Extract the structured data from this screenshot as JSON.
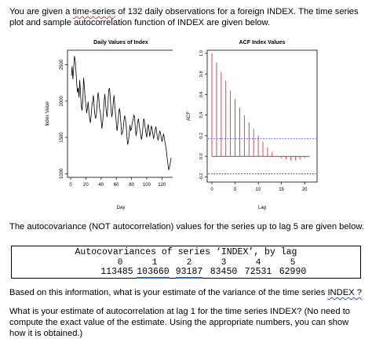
{
  "text": {
    "intro_a": "You are given a ",
    "intro_squig": "time-series",
    "intro_b": " of 132 daily observations for a foreign INDEX. The time series plot and sample autocorrelation function of INDEX are given below.",
    "autocov_intro": "The autocovariance (NOT autocorrelation) values for the series up to lag 5 are given below.",
    "question1_a": "Based on this information, what is your estimate of the variance of the time series ",
    "question1_squig": "INDEX ?",
    "question2": "What is your estimate of autocorrelation at lag 1 for the time series INDEX? (No need to compute the exact value of the estimate. Using the appropriate numbers, you can show how it is obtained.)"
  },
  "r_output": {
    "header": "Autocovariances of series ‘INDEX’, by lag",
    "lags": [
      "0",
      "1",
      "2",
      "3",
      "4",
      "5"
    ],
    "values": [
      "113485",
      "103660",
      "93187",
      "83450",
      "72531",
      "62990"
    ],
    "underlined": [
      "103660",
      "93187"
    ]
  },
  "colors": {
    "acf_bars": "#e83030",
    "ci_line": "#3a3af0",
    "underline": "#2f62c8",
    "spellcheck": "#d04040"
  },
  "chart_data": [
    {
      "type": "line",
      "title": "Daily Values of Index",
      "xlabel": "Day",
      "ylabel": "Index Value",
      "xlim": [
        0,
        132
      ],
      "ylim": [
        950,
        2700
      ],
      "xticks": [
        "0",
        "20",
        "40",
        "60",
        "80",
        "100",
        "120"
      ],
      "yticks": [
        "1000",
        "1500",
        "2000",
        "2500"
      ],
      "series": [
        {
          "x": [
            1,
            2,
            3,
            4,
            5,
            6,
            7,
            8,
            9,
            10,
            11,
            12,
            13,
            14,
            15,
            16,
            17,
            18,
            19,
            20,
            21,
            22,
            23,
            24,
            25,
            26,
            27,
            28,
            29,
            30,
            31,
            32,
            33,
            34,
            35,
            36,
            37,
            38,
            39,
            40,
            41,
            42,
            43,
            44,
            45,
            46,
            47,
            48,
            49,
            50,
            51,
            52,
            53,
            54,
            55,
            56,
            57,
            58,
            59,
            60,
            61,
            62,
            63,
            64,
            65,
            66,
            67,
            68,
            69,
            70,
            71,
            72,
            73,
            74,
            75,
            76,
            77,
            78,
            79,
            80,
            81,
            82,
            83,
            84,
            85,
            86,
            87,
            88,
            89,
            90,
            91,
            92,
            93,
            94,
            95,
            96,
            97,
            98,
            99,
            100,
            101,
            102,
            103,
            104,
            105,
            106,
            107,
            108,
            109,
            110,
            111,
            112,
            113,
            114,
            115,
            116,
            117,
            118,
            119,
            120,
            121,
            122,
            123,
            124,
            125,
            126,
            127,
            128,
            129,
            130,
            131,
            132
          ],
          "y": [
            2350,
            2480,
            2300,
            2450,
            2620,
            2560,
            2410,
            2230,
            2120,
            2180,
            2050,
            2290,
            2110,
            1930,
            1870,
            2000,
            2320,
            2200,
            2050,
            1960,
            1830,
            1900,
            1990,
            1850,
            1760,
            1700,
            1810,
            1950,
            2000,
            2080,
            1900,
            1800,
            1760,
            1840,
            1980,
            2120,
            2050,
            1900,
            1850,
            1750,
            1620,
            1700,
            1830,
            2000,
            2100,
            1950,
            1840,
            1780,
            1960,
            2150,
            2180,
            2060,
            1900,
            1780,
            1830,
            1980,
            2080,
            1950,
            1820,
            1700,
            1590,
            1680,
            1800,
            1900,
            1850,
            1700,
            1540,
            1560,
            1610,
            1730,
            1800,
            1760,
            1650,
            1500,
            1400,
            1450,
            1560,
            1670,
            1590,
            1620,
            1700,
            1740,
            1810,
            1780,
            1630,
            1520,
            1600,
            1700,
            1760,
            1680,
            1600,
            1550,
            1470,
            1530,
            1640,
            1760,
            1720,
            1630,
            1560,
            1500,
            1620,
            1680,
            1600,
            1510,
            1570,
            1660,
            1620,
            1550,
            1480,
            1540,
            1600,
            1650,
            1580,
            1500,
            1460,
            1520,
            1590,
            1560,
            1500,
            1440,
            1480,
            1550,
            1500,
            1430,
            1380,
            1300,
            1200,
            1120,
            1050,
            1100,
            1150,
            1220
          ]
        }
      ]
    },
    {
      "type": "bar",
      "title": "ACF Index Values",
      "xlabel": "Lag",
      "ylabel": "ACF",
      "xlim": [
        0,
        22
      ],
      "ylim": [
        -0.22,
        1.0
      ],
      "xticks": [
        "0",
        "5",
        "10",
        "15",
        "20"
      ],
      "yticks": [
        "-0.2",
        "0.0",
        "0.2",
        "0.4",
        "0.6",
        "0.8",
        "1.0"
      ],
      "confidence_band": [
        0.171,
        -0.171
      ],
      "lags": [
        0,
        1,
        2,
        3,
        4,
        5,
        6,
        7,
        8,
        9,
        10,
        11,
        12,
        13,
        14,
        15,
        16,
        17,
        18,
        19,
        20,
        21
      ],
      "values": [
        1.0,
        0.913,
        0.821,
        0.735,
        0.639,
        0.555,
        0.475,
        0.4,
        0.33,
        0.265,
        0.2,
        0.14,
        0.085,
        0.04,
        0.005,
        -0.015,
        -0.03,
        -0.04,
        -0.04,
        -0.03,
        -0.02,
        -0.01
      ]
    }
  ]
}
